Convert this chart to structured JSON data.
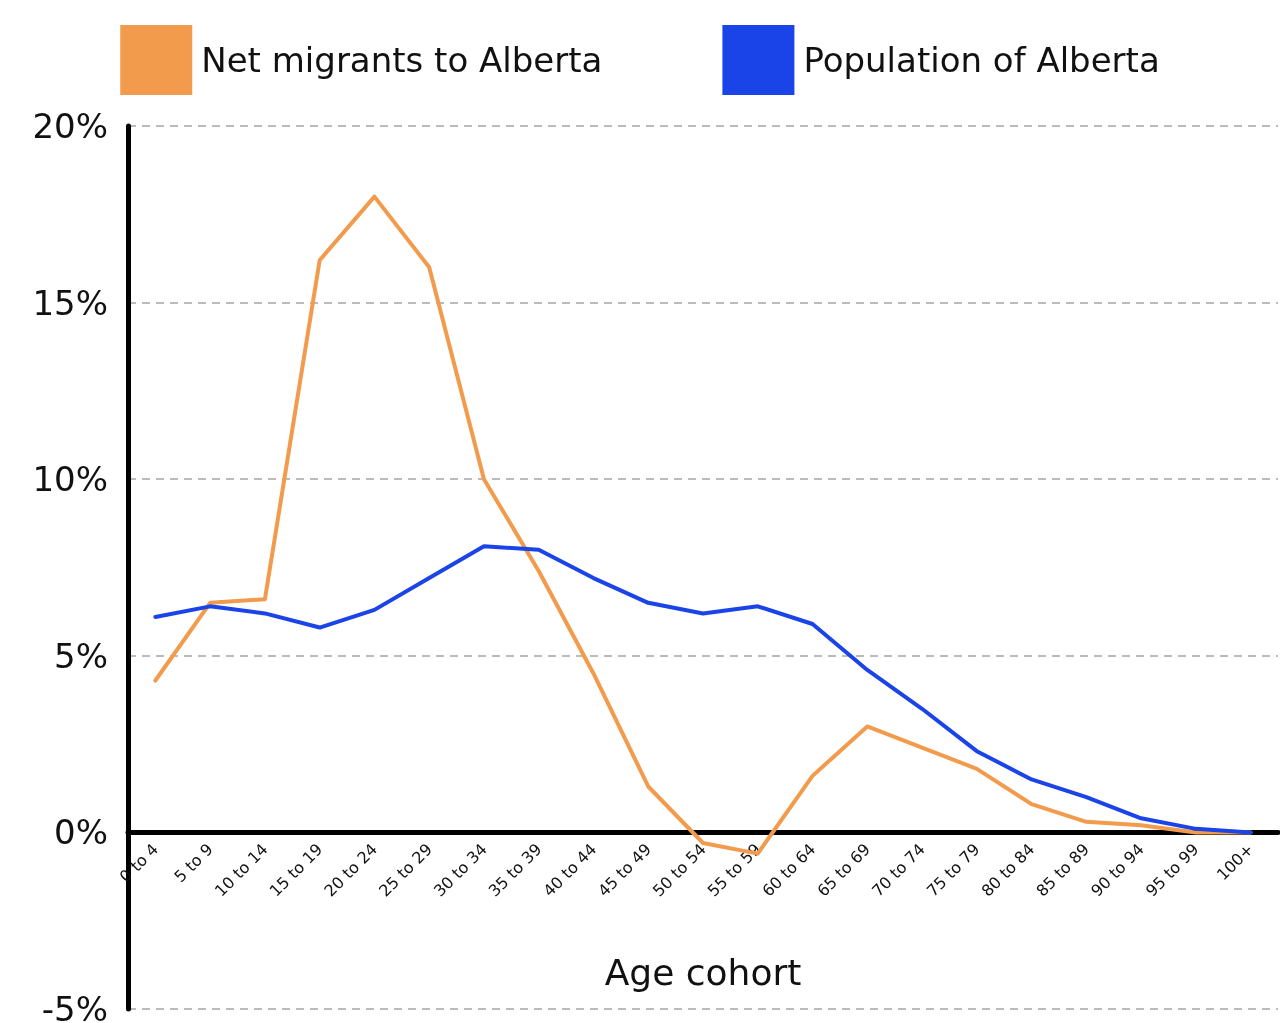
{
  "chart_data": {
    "type": "line",
    "xlabel": "Age cohort",
    "categories": [
      "0 to 4",
      "5 to 9",
      "10 to 14",
      "15 to 19",
      "20 to 24",
      "25 to 29",
      "30 to 34",
      "35 to 39",
      "40 to 44",
      "45 to 49",
      "50 to 54",
      "55 to 59",
      "60 to 64",
      "65 to 69",
      "70 to 74",
      "75 to 79",
      "80 to 84",
      "85 to 89",
      "90 to 94",
      "95 to 99",
      "100+"
    ],
    "series": [
      {
        "name": "Net migrants to Alberta",
        "color": "#f29b4d",
        "values": [
          4.3,
          6.5,
          6.6,
          16.2,
          18.0,
          16.0,
          10.0,
          7.4,
          4.5,
          1.3,
          -0.3,
          -0.6,
          1.6,
          3.0,
          2.4,
          1.8,
          0.8,
          0.3,
          0.2,
          0.0,
          0.0
        ]
      },
      {
        "name": "Population of Alberta",
        "color": "#1a44e8",
        "values": [
          6.1,
          6.4,
          6.2,
          5.8,
          6.3,
          7.2,
          8.1,
          8.0,
          7.2,
          6.5,
          6.2,
          6.4,
          5.9,
          4.6,
          3.5,
          2.3,
          1.5,
          1.0,
          0.4,
          0.1,
          0.0
        ]
      }
    ],
    "ylim": [
      -5,
      20
    ],
    "yticks": [
      {
        "value": -5,
        "label": "-5%"
      },
      {
        "value": 0,
        "label": "0%"
      },
      {
        "value": 5,
        "label": "5%"
      },
      {
        "value": 10,
        "label": "10%"
      },
      {
        "value": 15,
        "label": "15%"
      },
      {
        "value": 20,
        "label": "20%"
      }
    ],
    "grid": "y",
    "legend": "top",
    "marker": "none",
    "line_style": "solid"
  }
}
